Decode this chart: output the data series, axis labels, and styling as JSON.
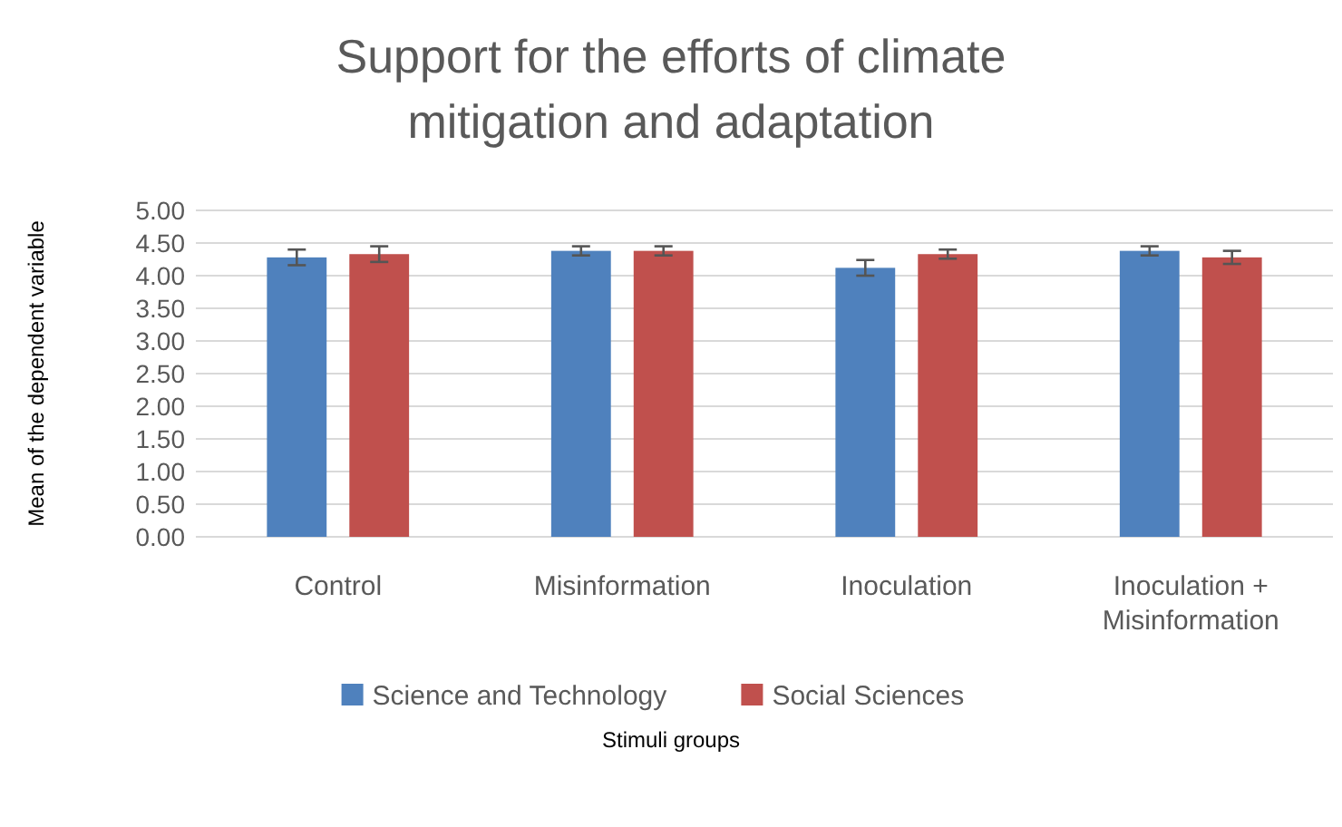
{
  "chart_data": {
    "type": "bar",
    "title": "Support for the efforts of climate mitigation and adaptation",
    "xlabel": "Stimuli groups",
    "ylabel": "Mean of the dependent variable",
    "categories": [
      "Control",
      "Misinformation",
      "Inoculation",
      "Inoculation + Misinformation"
    ],
    "series": [
      {
        "name": "Science and Technology",
        "color": "#4f81bd",
        "values": [
          4.28,
          4.38,
          4.12,
          4.38
        ],
        "errors": [
          0.12,
          0.07,
          0.12,
          0.07
        ]
      },
      {
        "name": "Social Sciences",
        "color": "#c0504d",
        "values": [
          4.33,
          4.38,
          4.33,
          4.28
        ],
        "errors": [
          0.12,
          0.07,
          0.07,
          0.1
        ]
      }
    ],
    "ylim": [
      0,
      5
    ],
    "yticks": [
      {
        "value": 0,
        "label": "0.00"
      },
      {
        "value": 0.5,
        "label": "0.50"
      },
      {
        "value": 1,
        "label": "1.00"
      },
      {
        "value": 1.5,
        "label": "1.50"
      },
      {
        "value": 2,
        "label": "2.00"
      },
      {
        "value": 2.5,
        "label": "2.50"
      },
      {
        "value": 3,
        "label": "3.00"
      },
      {
        "value": 3.5,
        "label": "3.50"
      },
      {
        "value": 4,
        "label": "4.00"
      },
      {
        "value": 4.5,
        "label": "4.50"
      },
      {
        "value": 5,
        "label": "5.00"
      }
    ],
    "grid": "y",
    "legend": "bottom"
  }
}
